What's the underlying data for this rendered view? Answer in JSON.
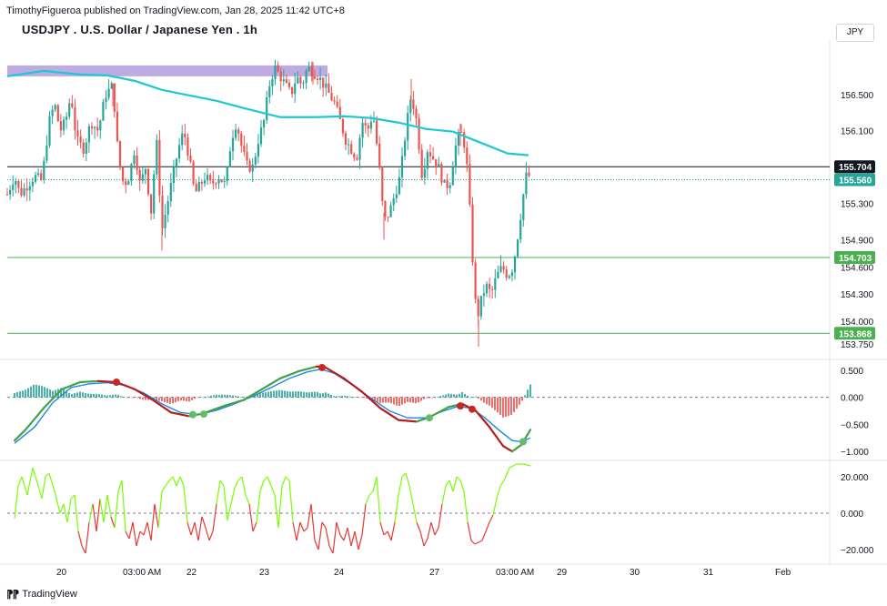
{
  "header": {
    "published_line": "TimothyFigueroa published on TradingView.com, Jan 28, 2025 11:42 UTC+8",
    "symbol_title": "USDJPY . U.S. Dollar / Japanese Yen . 1h",
    "currency_button": "JPY"
  },
  "footer": {
    "brand": "TradingView"
  },
  "colors": {
    "up": "#26a69a",
    "down": "#ef5350",
    "ma": "#1ec8d2",
    "zone": "#b39ddb",
    "support": "#4caf50",
    "macd_line": "#43a047",
    "signal_line": "#1e88e5",
    "macd_down": "#b71c1c",
    "osc_up": "#76ff03",
    "osc_down": "#e53935"
  },
  "chart_data": [
    {
      "type": "candlestick",
      "title": "USDJPY . U.S. Dollar / Japanese Yen . 1h",
      "ylim": [
        153.6,
        157.1
      ],
      "y_ticks": [
        "156.500",
        "156.100",
        "155.300",
        "154.900",
        "154.600",
        "154.300",
        "154.000",
        "153.750"
      ],
      "x_ticks": [
        "20",
        "03:00 AM",
        "22",
        "23",
        "24",
        "27",
        "03:00 AM",
        "29",
        "30",
        "31",
        "Feb"
      ],
      "price_labels": [
        {
          "value": "155.704",
          "style": "black-line"
        },
        {
          "value": "155.560",
          "style": "current-price"
        },
        {
          "value": "154.703",
          "style": "support-line"
        },
        {
          "value": "153.868",
          "style": "support-line"
        }
      ],
      "horizontal_lines": [
        155.704,
        154.703,
        153.868
      ],
      "supply_zone": {
        "low": 156.7,
        "high": 156.82,
        "x_start": 0,
        "x_end": 352
      },
      "ma": [
        [
          0,
          156.7
        ],
        [
          40,
          156.76
        ],
        [
          80,
          156.72
        ],
        [
          110,
          156.71
        ],
        [
          140,
          156.65
        ],
        [
          170,
          156.55
        ],
        [
          200,
          156.49
        ],
        [
          230,
          156.43
        ],
        [
          260,
          156.35
        ],
        [
          300,
          156.25
        ],
        [
          340,
          156.25
        ],
        [
          370,
          156.26
        ],
        [
          400,
          156.24
        ],
        [
          430,
          156.19
        ],
        [
          460,
          156.12
        ],
        [
          490,
          156.09
        ],
        [
          520,
          155.97
        ],
        [
          550,
          155.85
        ],
        [
          573,
          155.83
        ]
      ],
      "close_path": [
        [
          0,
          155.4
        ],
        [
          8,
          155.6
        ],
        [
          14,
          155.4
        ],
        [
          22,
          155.5
        ],
        [
          30,
          155.6
        ],
        [
          38,
          155.55
        ],
        [
          46,
          156.2
        ],
        [
          52,
          156.4
        ],
        [
          58,
          156.1
        ],
        [
          64,
          156.2
        ],
        [
          70,
          156.5
        ],
        [
          76,
          156.0
        ],
        [
          84,
          155.9
        ],
        [
          92,
          156.2
        ],
        [
          100,
          156.1
        ],
        [
          108,
          156.5
        ],
        [
          116,
          156.6
        ],
        [
          122,
          155.8
        ],
        [
          128,
          155.5
        ],
        [
          134,
          155.6
        ],
        [
          140,
          155.9
        ],
        [
          146,
          155.5
        ],
        [
          152,
          155.7
        ],
        [
          158,
          155.2
        ],
        [
          164,
          156.0
        ],
        [
          170,
          155.0
        ],
        [
          176,
          155.3
        ],
        [
          182,
          155.6
        ],
        [
          188,
          155.9
        ],
        [
          194,
          156.1
        ],
        [
          200,
          155.8
        ],
        [
          206,
          155.4
        ],
        [
          212,
          155.5
        ],
        [
          218,
          155.6
        ],
        [
          224,
          155.5
        ],
        [
          232,
          155.6
        ],
        [
          240,
          155.5
        ],
        [
          246,
          156.0
        ],
        [
          252,
          156.2
        ],
        [
          258,
          155.9
        ],
        [
          264,
          155.7
        ],
        [
          270,
          155.7
        ],
        [
          276,
          156.0
        ],
        [
          282,
          156.2
        ],
        [
          288,
          156.6
        ],
        [
          294,
          156.8
        ],
        [
          300,
          156.7
        ],
        [
          306,
          156.6
        ],
        [
          312,
          156.5
        ],
        [
          318,
          156.7
        ],
        [
          324,
          156.6
        ],
        [
          330,
          156.8
        ],
        [
          336,
          156.75
        ],
        [
          342,
          156.7
        ],
        [
          348,
          156.6
        ],
        [
          354,
          156.5
        ],
        [
          360,
          156.4
        ],
        [
          366,
          156.2
        ],
        [
          372,
          156.0
        ],
        [
          378,
          155.9
        ],
        [
          384,
          155.8
        ],
        [
          390,
          156.2
        ],
        [
          396,
          156.1
        ],
        [
          402,
          156.3
        ],
        [
          408,
          155.8
        ],
        [
          414,
          155.1
        ],
        [
          420,
          155.2
        ],
        [
          426,
          155.4
        ],
        [
          432,
          155.6
        ],
        [
          438,
          156.1
        ],
        [
          444,
          156.5
        ],
        [
          450,
          156.2
        ],
        [
          456,
          155.6
        ],
        [
          462,
          155.9
        ],
        [
          468,
          155.8
        ],
        [
          474,
          155.7
        ],
        [
          480,
          155.5
        ],
        [
          486,
          155.5
        ],
        [
          492,
          155.9
        ],
        [
          498,
          156.1
        ],
        [
          504,
          155.9
        ],
        [
          508,
          155.3
        ],
        [
          512,
          154.6
        ],
        [
          516,
          154.0
        ],
        [
          520,
          154.2
        ],
        [
          526,
          154.4
        ],
        [
          532,
          154.3
        ],
        [
          538,
          154.5
        ],
        [
          544,
          154.6
        ],
        [
          550,
          154.5
        ],
        [
          556,
          154.6
        ],
        [
          562,
          155.0
        ],
        [
          566,
          155.3
        ],
        [
          570,
          155.6
        ],
        [
          574,
          155.6
        ]
      ],
      "pivot_high": [
        [
          116,
          156.62
        ],
        [
          336,
          156.86
        ],
        [
          444,
          156.67
        ],
        [
          498,
          156.18
        ]
      ],
      "pivot_low": [
        [
          170,
          154.78
        ],
        [
          414,
          154.9
        ],
        [
          518,
          153.72
        ]
      ]
    },
    {
      "type": "line",
      "panel": "macd",
      "ylim": [
        -1.15,
        0.65
      ],
      "y_ticks": [
        "0.500",
        "0.000",
        "−0.500",
        "−1.000"
      ],
      "macd": [
        [
          8,
          -0.8
        ],
        [
          20,
          -0.6
        ],
        [
          40,
          -0.2
        ],
        [
          60,
          0.15
        ],
        [
          80,
          0.28
        ],
        [
          100,
          0.3
        ],
        [
          120,
          0.28
        ],
        [
          140,
          0.15
        ],
        [
          160,
          -0.05
        ],
        [
          180,
          -0.28
        ],
        [
          200,
          -0.35
        ],
        [
          215,
          -0.3
        ],
        [
          240,
          -0.15
        ],
        [
          260,
          -0.05
        ],
        [
          280,
          0.15
        ],
        [
          300,
          0.35
        ],
        [
          320,
          0.48
        ],
        [
          340,
          0.57
        ],
        [
          350,
          0.55
        ],
        [
          370,
          0.35
        ],
        [
          390,
          0.1
        ],
        [
          410,
          -0.2
        ],
        [
          430,
          -0.42
        ],
        [
          450,
          -0.45
        ],
        [
          465,
          -0.36
        ],
        [
          485,
          -0.18
        ],
        [
          500,
          -0.12
        ],
        [
          515,
          -0.25
        ],
        [
          530,
          -0.55
        ],
        [
          545,
          -0.9
        ],
        [
          555,
          -1.0
        ],
        [
          565,
          -0.88
        ],
        [
          575,
          -0.6
        ]
      ],
      "signal": [
        [
          8,
          -0.85
        ],
        [
          30,
          -0.55
        ],
        [
          50,
          -0.1
        ],
        [
          70,
          0.18
        ],
        [
          90,
          0.25
        ],
        [
          110,
          0.27
        ],
        [
          130,
          0.22
        ],
        [
          150,
          0.08
        ],
        [
          170,
          -0.12
        ],
        [
          190,
          -0.28
        ],
        [
          210,
          -0.32
        ],
        [
          230,
          -0.24
        ],
        [
          250,
          -0.12
        ],
        [
          270,
          0.02
        ],
        [
          290,
          0.18
        ],
        [
          310,
          0.35
        ],
        [
          330,
          0.47
        ],
        [
          345,
          0.52
        ],
        [
          360,
          0.44
        ],
        [
          380,
          0.22
        ],
        [
          400,
          -0.02
        ],
        [
          420,
          -0.25
        ],
        [
          440,
          -0.38
        ],
        [
          460,
          -0.38
        ],
        [
          480,
          -0.25
        ],
        [
          495,
          -0.17
        ],
        [
          510,
          -0.2
        ],
        [
          525,
          -0.38
        ],
        [
          540,
          -0.6
        ],
        [
          555,
          -0.8
        ],
        [
          565,
          -0.82
        ],
        [
          575,
          -0.75
        ]
      ],
      "red_dots": [
        [
          120,
          0.28
        ],
        [
          346,
          0.55
        ],
        [
          498,
          -0.16
        ],
        [
          511,
          -0.22
        ]
      ],
      "green_dots": [
        [
          204,
          -0.32
        ],
        [
          216,
          -0.31
        ],
        [
          464,
          -0.38
        ],
        [
          567,
          -0.82
        ]
      ]
    },
    {
      "type": "line",
      "panel": "oscillator",
      "ylim": [
        -27,
        28
      ],
      "y_ticks": [
        "20.000",
        "0.000",
        "−20.000"
      ],
      "values": [
        [
          8,
          -3
        ],
        [
          12,
          15
        ],
        [
          16,
          20
        ],
        [
          22,
          10
        ],
        [
          28,
          25
        ],
        [
          34,
          15
        ],
        [
          38,
          8
        ],
        [
          42,
          20
        ],
        [
          46,
          22
        ],
        [
          52,
          12
        ],
        [
          58,
          0
        ],
        [
          62,
          5
        ],
        [
          66,
          -5
        ],
        [
          70,
          8
        ],
        [
          74,
          10
        ],
        [
          78,
          -10
        ],
        [
          82,
          -18
        ],
        [
          86,
          -22
        ],
        [
          90,
          -5
        ],
        [
          94,
          5
        ],
        [
          98,
          -10
        ],
        [
          102,
          8
        ],
        [
          106,
          -5
        ],
        [
          110,
          10
        ],
        [
          114,
          -2
        ],
        [
          118,
          -8
        ],
        [
          122,
          12
        ],
        [
          126,
          18
        ],
        [
          130,
          -10
        ],
        [
          134,
          -14
        ],
        [
          138,
          -5
        ],
        [
          142,
          -18
        ],
        [
          146,
          -10
        ],
        [
          150,
          -12
        ],
        [
          154,
          -5
        ],
        [
          158,
          -15
        ],
        [
          162,
          5
        ],
        [
          166,
          -8
        ],
        [
          170,
          12
        ],
        [
          174,
          15
        ],
        [
          178,
          18
        ],
        [
          182,
          20
        ],
        [
          186,
          15
        ],
        [
          190,
          20
        ],
        [
          194,
          15
        ],
        [
          198,
          -5
        ],
        [
          202,
          -12
        ],
        [
          206,
          -5
        ],
        [
          210,
          -15
        ],
        [
          214,
          -2
        ],
        [
          218,
          -8
        ],
        [
          222,
          -15
        ],
        [
          226,
          -10
        ],
        [
          230,
          5
        ],
        [
          234,
          18
        ],
        [
          238,
          15
        ],
        [
          242,
          -4
        ],
        [
          246,
          5
        ],
        [
          250,
          14
        ],
        [
          254,
          18
        ],
        [
          258,
          20
        ],
        [
          262,
          10
        ],
        [
          266,
          5
        ],
        [
          270,
          -10
        ],
        [
          274,
          -5
        ],
        [
          278,
          12
        ],
        [
          282,
          18
        ],
        [
          286,
          20
        ],
        [
          290,
          15
        ],
        [
          294,
          10
        ],
        [
          298,
          -8
        ],
        [
          302,
          15
        ],
        [
          306,
          20
        ],
        [
          310,
          18
        ],
        [
          314,
          -5
        ],
        [
          318,
          -15
        ],
        [
          322,
          -5
        ],
        [
          326,
          -10
        ],
        [
          330,
          -8
        ],
        [
          334,
          5
        ],
        [
          338,
          -15
        ],
        [
          342,
          -20
        ],
        [
          346,
          -5
        ],
        [
          350,
          -8
        ],
        [
          354,
          -18
        ],
        [
          358,
          -22
        ],
        [
          362,
          -5
        ],
        [
          366,
          -12
        ],
        [
          370,
          -15
        ],
        [
          374,
          -8
        ],
        [
          378,
          -18
        ],
        [
          382,
          -10
        ],
        [
          386,
          -20
        ],
        [
          390,
          -12
        ],
        [
          394,
          5
        ],
        [
          398,
          10
        ],
        [
          402,
          12
        ],
        [
          406,
          20
        ],
        [
          410,
          -5
        ],
        [
          414,
          -12
        ],
        [
          418,
          -10
        ],
        [
          422,
          -15
        ],
        [
          426,
          -5
        ],
        [
          430,
          10
        ],
        [
          434,
          20
        ],
        [
          438,
          22
        ],
        [
          442,
          15
        ],
        [
          446,
          5
        ],
        [
          450,
          -5
        ],
        [
          454,
          -10
        ],
        [
          458,
          -18
        ],
        [
          462,
          -14
        ],
        [
          466,
          -5
        ],
        [
          470,
          -12
        ],
        [
          474,
          -8
        ],
        [
          478,
          5
        ],
        [
          482,
          15
        ],
        [
          486,
          18
        ],
        [
          490,
          12
        ],
        [
          494,
          20
        ],
        [
          498,
          18
        ],
        [
          502,
          12
        ],
        [
          506,
          -5
        ],
        [
          510,
          -15
        ],
        [
          514,
          -17
        ],
        [
          518,
          -16
        ],
        [
          522,
          -15
        ],
        [
          526,
          -10
        ],
        [
          530,
          -5
        ],
        [
          534,
          -1
        ],
        [
          538,
          8
        ],
        [
          542,
          15
        ],
        [
          546,
          18
        ],
        [
          552,
          25
        ],
        [
          560,
          27
        ],
        [
          568,
          27
        ],
        [
          575,
          26
        ]
      ]
    }
  ]
}
